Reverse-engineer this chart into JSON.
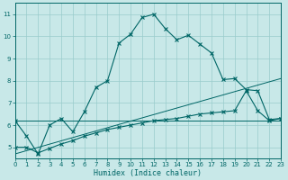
{
  "xlabel": "Humidex (Indice chaleur)",
  "bg_color": "#c8e8e8",
  "grid_color": "#99cccc",
  "line_color": "#006666",
  "xlim": [
    0,
    23
  ],
  "ylim": [
    4.5,
    11.5
  ],
  "yticks": [
    5,
    6,
    7,
    8,
    9,
    10,
    11
  ],
  "xticks": [
    0,
    1,
    2,
    3,
    4,
    5,
    6,
    7,
    8,
    9,
    10,
    11,
    12,
    13,
    14,
    15,
    16,
    17,
    18,
    19,
    20,
    21,
    22,
    23
  ],
  "series1_x": [
    0,
    1,
    2,
    3,
    4,
    5,
    6,
    7,
    8,
    9,
    10,
    11,
    12,
    13,
    14,
    15,
    16,
    17,
    18,
    19,
    20,
    21,
    22,
    23
  ],
  "series1_y": [
    6.2,
    5.5,
    4.7,
    6.0,
    6.3,
    5.7,
    6.6,
    7.7,
    8.0,
    9.7,
    10.1,
    10.85,
    11.0,
    10.35,
    9.85,
    10.05,
    9.65,
    9.25,
    8.05,
    8.1,
    7.6,
    7.55,
    6.25,
    6.3
  ],
  "series2_x": [
    0,
    23
  ],
  "series2_y": [
    6.2,
    6.2
  ],
  "series3_x": [
    0,
    1,
    2,
    3,
    4,
    5,
    6,
    7,
    8,
    9,
    10,
    11,
    12,
    13,
    14,
    15,
    16,
    17,
    18,
    19,
    20,
    21,
    22,
    23
  ],
  "series3_y": [
    5.0,
    5.0,
    4.75,
    4.95,
    5.15,
    5.3,
    5.5,
    5.65,
    5.8,
    5.9,
    6.0,
    6.1,
    6.2,
    6.25,
    6.3,
    6.4,
    6.5,
    6.55,
    6.6,
    6.65,
    7.55,
    6.65,
    6.2,
    6.3
  ],
  "series4_x": [
    0,
    23
  ],
  "series4_y": [
    4.7,
    8.1
  ]
}
